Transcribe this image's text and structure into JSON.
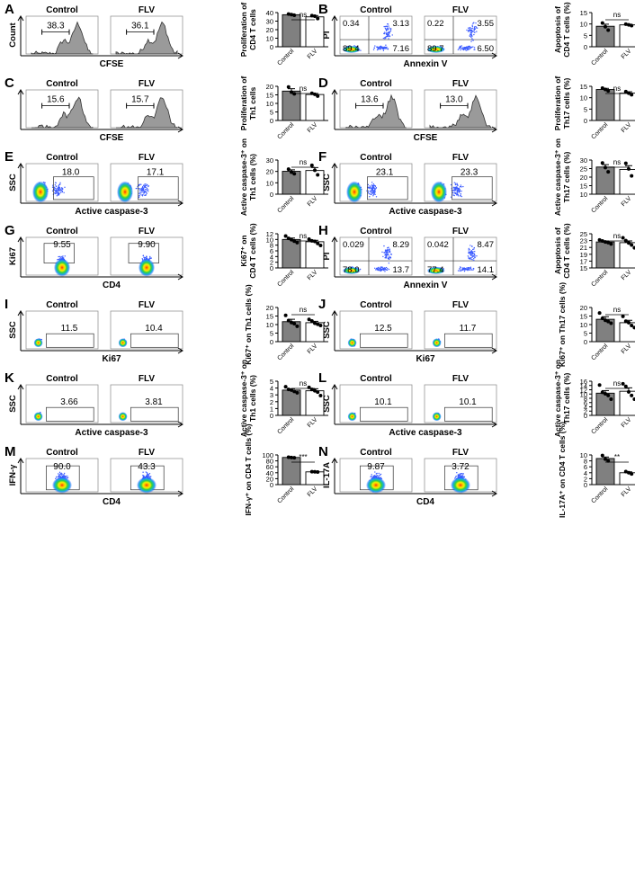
{
  "figure": {
    "cond_labels": [
      "Control",
      "FLV"
    ],
    "bar_xtick_labels": [
      "Control",
      "FLV"
    ],
    "panels": [
      {
        "letter": "A",
        "plot": "histogram",
        "xaxis": "CFSE",
        "yaxis": "Count",
        "gates": [
          "38.3",
          "36.1"
        ]
      },
      {
        "letter": "B",
        "plot": "quadrant",
        "xaxis": "Annexin V",
        "yaxis": "PI",
        "quads": [
          [
            "0.34",
            "3.13",
            "89.4",
            "7.16"
          ],
          [
            "0.22",
            "3.55",
            "89.7",
            "6.50"
          ]
        ]
      },
      {
        "letter": "C",
        "plot": "histogram",
        "xaxis": "CFSE",
        "yaxis": "",
        "gates": [
          "15.6",
          "15.7"
        ]
      },
      {
        "letter": "D",
        "plot": "histogram",
        "xaxis": "CFSE",
        "yaxis": "",
        "gates": [
          "13.6",
          "13.0"
        ]
      },
      {
        "letter": "E",
        "plot": "dot",
        "xaxis": "Active caspase-3",
        "yaxis": "SSC",
        "gates": [
          "18.0",
          "17.1"
        ]
      },
      {
        "letter": "F",
        "plot": "dot",
        "xaxis": "Active caspase-3",
        "yaxis": "SSC",
        "gates": [
          "23.1",
          "23.3"
        ]
      },
      {
        "letter": "G",
        "plot": "ki67",
        "xaxis": "CD4",
        "yaxis": "Ki67",
        "gates": [
          "9.55",
          "9.90"
        ]
      },
      {
        "letter": "H",
        "plot": "quadrant",
        "xaxis": "Annexin V",
        "yaxis": "PI",
        "quads": [
          [
            "0.029",
            "8.29",
            "78.0",
            "13.7"
          ],
          [
            "0.042",
            "8.47",
            "77.4",
            "14.1"
          ]
        ]
      },
      {
        "letter": "I",
        "plot": "sparse",
        "xaxis": "Ki67",
        "yaxis": "SSC",
        "gates": [
          "11.5",
          "10.4"
        ]
      },
      {
        "letter": "J",
        "plot": "sparse",
        "xaxis": "Ki67",
        "yaxis": "SSC",
        "gates": [
          "12.5",
          "11.7"
        ]
      },
      {
        "letter": "K",
        "plot": "sparse",
        "xaxis": "Active caspase-3",
        "yaxis": "SSC",
        "gates": [
          "3.66",
          "3.81"
        ]
      },
      {
        "letter": "L",
        "plot": "sparse",
        "xaxis": "Active caspase-3",
        "yaxis": "SSC",
        "gates": [
          "10.1",
          "10.1"
        ]
      },
      {
        "letter": "M",
        "plot": "ifn",
        "xaxis": "CD4",
        "yaxis": "IFN-γ",
        "gates": [
          "90.0",
          "43.3"
        ]
      },
      {
        "letter": "N",
        "plot": "ifn",
        "xaxis": "CD4",
        "yaxis": "IL-17A",
        "gates": [
          "9.87",
          "3.72"
        ]
      }
    ]
  },
  "chart_data": [
    {
      "panel": "A",
      "type": "bar",
      "categories": [
        "Control",
        "FLV"
      ],
      "ylabel": [
        "Proliferation of",
        "CD4 T cells"
      ],
      "ylim": [
        0,
        40
      ],
      "yticks": [
        0,
        10,
        20,
        30,
        40
      ],
      "values": [
        37.5,
        35.0
      ],
      "errors": [
        1.0,
        1.5
      ],
      "points": [
        [
          38.3,
          37.6,
          36.8
        ],
        [
          36.4,
          35.8,
          33.0
        ]
      ],
      "sig": "ns"
    },
    {
      "panel": "B",
      "type": "bar",
      "categories": [
        "Control",
        "FLV"
      ],
      "ylabel": [
        "Apoptosis of",
        "CD4 T cells (%)"
      ],
      "ylim": [
        0,
        15
      ],
      "yticks": [
        0,
        5,
        10,
        15
      ],
      "values": [
        9.0,
        9.6
      ],
      "errors": [
        0.9,
        0.3
      ],
      "points": [
        [
          10.4,
          8.8,
          7.3
        ],
        [
          9.9,
          9.6,
          9.3
        ]
      ],
      "sig": "ns"
    },
    {
      "panel": "C",
      "type": "bar",
      "categories": [
        "Control",
        "FLV"
      ],
      "ylabel": [
        "Proliferation of",
        "Th1 cells"
      ],
      "ylim": [
        0,
        20
      ],
      "yticks": [
        0,
        5,
        10,
        15,
        20
      ],
      "values": [
        17.2,
        15.2
      ],
      "errors": [
        1.4,
        0.6
      ],
      "points": [
        [
          19.6,
          16.6,
          15.6
        ],
        [
          15.9,
          15.3,
          14.3
        ]
      ],
      "sig": "ns"
    },
    {
      "panel": "D",
      "type": "bar",
      "categories": [
        "Control",
        "FLV"
      ],
      "ylabel": [
        "Proliferation of",
        "Th17 cells (%)"
      ],
      "ylim": [
        0,
        15
      ],
      "yticks": [
        0,
        5,
        10,
        15
      ],
      "values": [
        13.6,
        12.0
      ],
      "errors": [
        0.5,
        0.6
      ],
      "points": [
        [
          14.2,
          13.6,
          13.0
        ],
        [
          12.7,
          12.0,
          11.3
        ]
      ],
      "sig": "ns"
    },
    {
      "panel": "E",
      "type": "bar",
      "categories": [
        "Control",
        "FLV"
      ],
      "ylabel": [
        "Active caspase-3⁺ on",
        "Th1 cells (%)"
      ],
      "ylim": [
        0,
        30
      ],
      "yticks": [
        0,
        10,
        20,
        30
      ],
      "values": [
        20.1,
        20.8
      ],
      "errors": [
        1.3,
        2.6
      ],
      "points": [
        [
          22.0,
          19.3,
          18.0
        ],
        [
          25.4,
          21.0,
          17.0
        ]
      ],
      "sig": "ns"
    },
    {
      "panel": "F",
      "type": "bar",
      "categories": [
        "Control",
        "FLV"
      ],
      "ylabel": [
        "Active caspase-3⁺ on",
        "Th17 cells (%)"
      ],
      "ylim": [
        10,
        30
      ],
      "yticks": [
        10,
        15,
        20,
        25,
        30
      ],
      "values": [
        25.9,
        24.5
      ],
      "errors": [
        1.4,
        2.2
      ],
      "points": [
        [
          28.3,
          25.6,
          23.1
        ],
        [
          28.1,
          24.8,
          20.7
        ]
      ],
      "sig": "ns"
    },
    {
      "panel": "G",
      "type": "bar",
      "categories": [
        "Control",
        "FLV"
      ],
      "ylabel": [
        "Ki67⁺ on",
        "CD4 T cells (%)"
      ],
      "ylim": [
        0,
        12
      ],
      "yticks": [
        0,
        2,
        4,
        6,
        8,
        10,
        12
      ],
      "values": [
        10.0,
        9.2
      ],
      "errors": [
        0.5,
        0.5
      ],
      "points": [
        [
          11.2,
          10.4,
          9.9,
          9.4,
          8.9
        ],
        [
          10.1,
          9.5,
          9.3,
          8.6,
          7.9
        ]
      ],
      "sig": "ns"
    },
    {
      "panel": "H",
      "type": "bar",
      "categories": [
        "Control",
        "FLV"
      ],
      "ylabel": [
        "Apoptosis of",
        "CD4 T cells (%)"
      ],
      "ylim": [
        15,
        25
      ],
      "yticks": [
        15,
        17,
        19,
        21,
        23,
        25
      ],
      "values": [
        22.6,
        22.4
      ],
      "errors": [
        0.3,
        0.5
      ],
      "points": [
        [
          23.2,
          22.9,
          22.6,
          22.4,
          22.0
        ],
        [
          23.8,
          23.0,
          22.3,
          21.7,
          20.9
        ]
      ],
      "sig": "ns"
    },
    {
      "panel": "I",
      "type": "bar",
      "categories": [
        "Control",
        "FLV"
      ],
      "ylabel": [
        "Ki67⁺ on Th1 cells (%)"
      ],
      "ylim": [
        0,
        20
      ],
      "yticks": [
        0,
        5,
        10,
        15,
        20
      ],
      "values": [
        11.7,
        11.1
      ],
      "errors": [
        1.4,
        0.8
      ],
      "points": [
        [
          15.4,
          12.4,
          11.2,
          10.5,
          9.0
        ],
        [
          13.0,
          12.1,
          10.8,
          10.2,
          9.5
        ]
      ],
      "sig": "ns"
    },
    {
      "panel": "J",
      "type": "bar",
      "categories": [
        "Control",
        "FLV"
      ],
      "ylabel": [
        "Ki67⁺ on Th17 cells (%)"
      ],
      "ylim": [
        0,
        20
      ],
      "yticks": [
        0,
        5,
        10,
        15,
        20
      ],
      "values": [
        13.1,
        11.1
      ],
      "errors": [
        1.5,
        1.4
      ],
      "points": [
        [
          16.8,
          13.6,
          12.5,
          11.8,
          10.8
        ],
        [
          14.8,
          12.0,
          11.1,
          9.5,
          8.2
        ]
      ],
      "sig": "ns"
    },
    {
      "panel": "K",
      "type": "bar",
      "categories": [
        "Control",
        "FLV"
      ],
      "ylabel": [
        "Active caspase-3⁺ on",
        "Th1 cells (%)"
      ],
      "ylim": [
        0,
        5
      ],
      "yticks": [
        0,
        1,
        2,
        3,
        4,
        5
      ],
      "values": [
        3.7,
        3.6
      ],
      "errors": [
        0.2,
        0.3
      ],
      "points": [
        [
          4.2,
          3.8,
          3.7,
          3.5,
          3.3
        ],
        [
          4.1,
          3.8,
          3.6,
          3.4,
          2.9
        ]
      ],
      "sig": "ns"
    },
    {
      "panel": "L",
      "type": "bar",
      "categories": [
        "Control",
        "FLV"
      ],
      "ylabel": [
        "Active caspase-3⁺ on",
        "Th17 cells (%)"
      ],
      "ylim": [
        0,
        16
      ],
      "yticks": [
        0,
        2,
        4,
        6,
        8,
        10,
        12,
        14,
        16
      ],
      "values": [
        10.4,
        11.3
      ],
      "errors": [
        1.2,
        1.6
      ],
      "points": [
        [
          14.2,
          10.8,
          10.1,
          9.3,
          7.6
        ],
        [
          14.8,
          13.6,
          11.0,
          9.3,
          7.6
        ]
      ],
      "sig": "ns"
    },
    {
      "panel": "M",
      "type": "bar",
      "categories": [
        "Control",
        "FLV"
      ],
      "ylabel": [
        "IFN-γ⁺ on CD4 T cells (%)"
      ],
      "ylim": [
        0,
        100
      ],
      "yticks": [
        0,
        20,
        40,
        60,
        80,
        100
      ],
      "values": [
        91.5,
        43.0
      ],
      "errors": [
        0.8,
        0.6
      ],
      "points": [
        [
          92.5,
          91.4,
          90.6
        ],
        [
          43.6,
          43.0,
          42.4
        ]
      ],
      "sig": "***"
    },
    {
      "panel": "N",
      "type": "bar",
      "categories": [
        "Control",
        "FLV"
      ],
      "ylabel": [
        "IL-17A⁺ on CD4 T cells (%)"
      ],
      "ylim": [
        0,
        10
      ],
      "yticks": [
        0,
        2,
        4,
        6,
        8,
        10
      ],
      "values": [
        8.8,
        4.0
      ],
      "errors": [
        0.5,
        0.3
      ],
      "points": [
        [
          9.8,
          8.6,
          8.0
        ],
        [
          4.4,
          4.0,
          3.6
        ]
      ],
      "sig": "**"
    }
  ]
}
